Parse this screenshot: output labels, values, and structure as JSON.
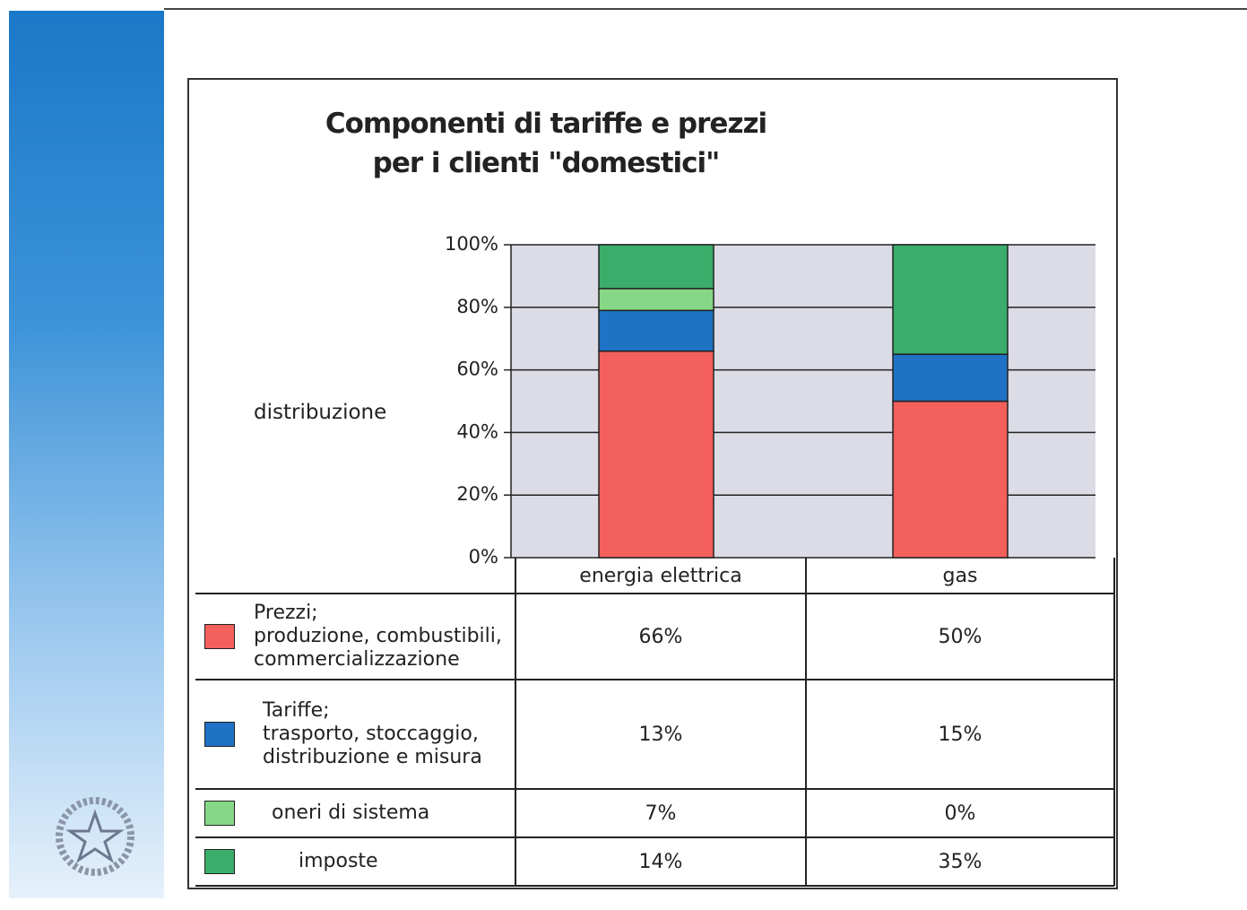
{
  "chart_data": {
    "type": "stacked_bar",
    "title": "Componenti di tariffe e prezzi\nper i clienti \"domestici\"",
    "y_label": "distribuzione",
    "categories": [
      "energia elettrica",
      "gas"
    ],
    "series": [
      {
        "name": "Prezzi;\nproduzione,  combustibili,\ncommercializzazione",
        "color": "#f4605c",
        "values": [
          66,
          50
        ],
        "value_labels": [
          "66%",
          "50%"
        ]
      },
      {
        "name": "Tariffe;\ntrasporto, stoccaggio,\ndistribuzione e misura",
        "color": "#1f72c4",
        "values": [
          13,
          15
        ],
        "value_labels": [
          "13%",
          "15%"
        ]
      },
      {
        "name": "oneri di sistema",
        "color": "#86d886",
        "values": [
          7,
          0
        ],
        "value_labels": [
          "7%",
          "0%"
        ]
      },
      {
        "name": "imposte",
        "color": "#3aad6a",
        "values": [
          14,
          35
        ],
        "value_labels": [
          "14%",
          "35%"
        ]
      }
    ],
    "ylim": [
      0,
      100
    ],
    "yticks": [
      {
        "value": 0,
        "label": "0%"
      },
      {
        "value": 20,
        "label": "20%"
      },
      {
        "value": 40,
        "label": "40%"
      },
      {
        "value": 60,
        "label": "60%"
      },
      {
        "value": 80,
        "label": "80%"
      },
      {
        "value": 100,
        "label": "100%"
      }
    ],
    "grid": true
  }
}
